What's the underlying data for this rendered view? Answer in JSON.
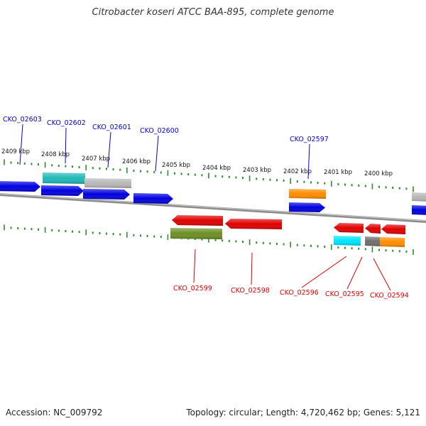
{
  "title": "Citrobacter koseri ATCC BAA-895, complete genome",
  "footer": {
    "accession": "Accession: NC_009792",
    "summary": "Topology: circular; Length: 4,720,462 bp; Genes: 5,121"
  },
  "ruler": [
    {
      "label": "2409 kbp"
    },
    {
      "label": "2408 kbp"
    },
    {
      "label": "2407 kbp"
    },
    {
      "label": "2406 kbp"
    },
    {
      "label": "2405 kbp"
    },
    {
      "label": "2404 kbp"
    },
    {
      "label": "2403 kbp"
    },
    {
      "label": "2402 kbp"
    },
    {
      "label": "2401 kbp"
    },
    {
      "label": "2400 kbp"
    }
  ],
  "colors": {
    "blue": "#0000e0",
    "teal": "#20b8b8",
    "gray": "#b8b8b8",
    "orange": "#ff8c00",
    "red": "#e00000",
    "olive": "#6b8e23",
    "cyan": "#00e5ff",
    "darkgray": "#6e6e6e",
    "tick": "#2e8b2e",
    "backbone": "#8c8c8c",
    "label_top": "#0000cc",
    "label_bottom": "#dd0000"
  },
  "labels_top": [
    {
      "text": "CKO_02603"
    },
    {
      "text": "CKO_02602"
    },
    {
      "text": "CKO_02601"
    },
    {
      "text": "CKO_02600"
    },
    {
      "text": "CKO_02597"
    }
  ],
  "labels_bottom": [
    {
      "text": "CKO_02599"
    },
    {
      "text": "CKO_02598"
    },
    {
      "text": "CKO_02596"
    },
    {
      "text": "CKO_02595"
    },
    {
      "text": "CKO_02594"
    }
  ]
}
